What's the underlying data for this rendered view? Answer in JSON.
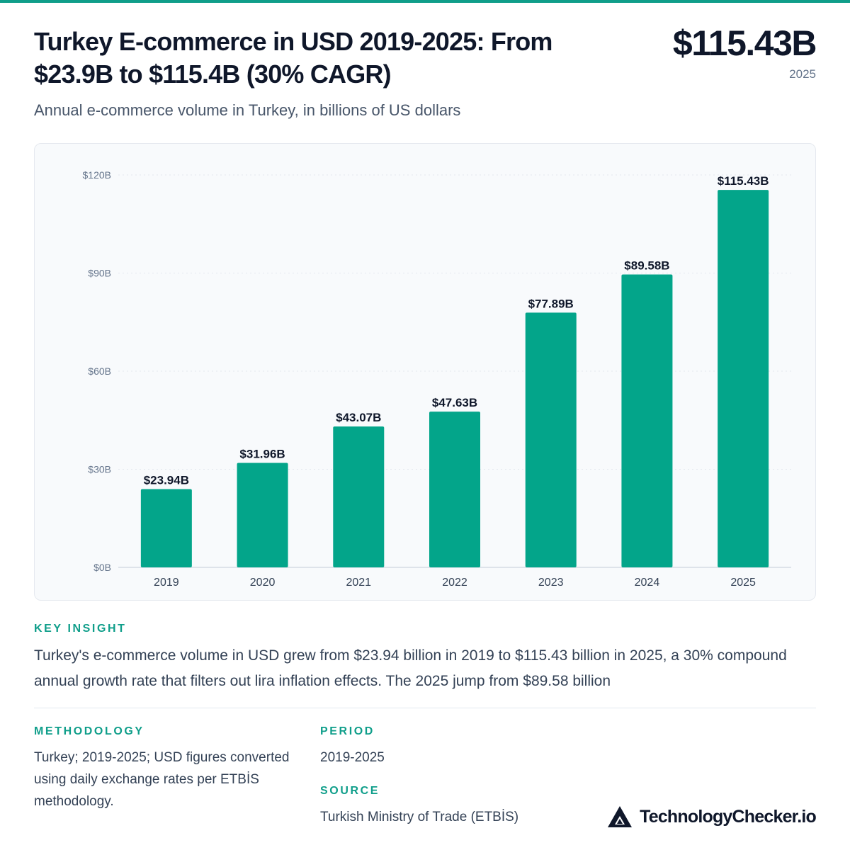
{
  "header": {
    "title": "Turkey E-commerce in USD 2019-2025: From $23.9B to $115.4B (30% CAGR)",
    "headline_value": "$115.43B",
    "headline_year": "2025",
    "subtitle": "Annual e-commerce volume in Turkey, in billions of US dollars"
  },
  "chart_data": {
    "type": "bar",
    "categories": [
      "2019",
      "2020",
      "2021",
      "2022",
      "2023",
      "2024",
      "2025"
    ],
    "values": [
      23.94,
      31.96,
      43.07,
      47.63,
      77.89,
      89.58,
      115.43
    ],
    "data_labels": [
      "$23.94B",
      "$31.96B",
      "$43.07B",
      "$47.63B",
      "$77.89B",
      "$89.58B",
      "$115.43B"
    ],
    "y_ticks": [
      0,
      30,
      60,
      90,
      120
    ],
    "y_tick_labels": [
      "$0B",
      "$30B",
      "$60B",
      "$90B",
      "$120B"
    ],
    "ylim": [
      0,
      120
    ],
    "grid": true,
    "bar_color": "#03a58a"
  },
  "insight": {
    "label": "KEY INSIGHT",
    "text": "Turkey's e-commerce volume in USD grew from $23.94 billion in 2019 to $115.43 billion in 2025, a 30% compound annual growth rate that filters out lira inflation effects. The 2025 jump from $89.58 billion"
  },
  "methodology": {
    "label": "METHODOLOGY",
    "text": "Turkey; 2019-2025; USD figures converted using daily exchange rates per ETBİS methodology."
  },
  "period": {
    "label": "PERIOD",
    "text": "2019-2025"
  },
  "source": {
    "label": "SOURCE",
    "text": "Turkish Ministry of Trade (ETBİS)"
  },
  "brand": {
    "name": "TechnologyChecker.io",
    "icon": "triangle-logo-icon"
  },
  "colors": {
    "accent": "#0f9e8a",
    "bar": "#03a58a",
    "text": "#0f172a"
  }
}
